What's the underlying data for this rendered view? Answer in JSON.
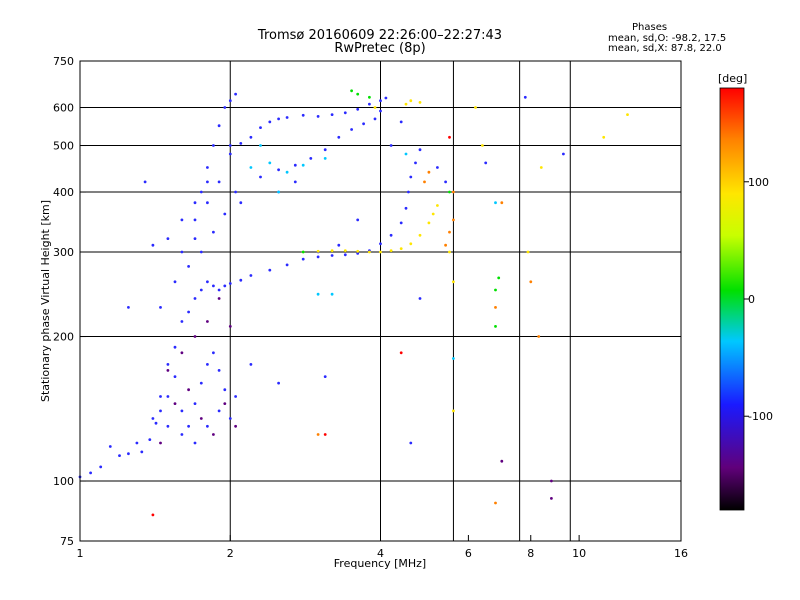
{
  "header": {
    "title_line1": "Tromsø 20160609 22:26:00–22:27:43",
    "title_line2": "RwPretec (8p)",
    "phase_title": "Phases",
    "phase_o": "mean, sd,O: -98.2, 17.5",
    "phase_x": "mean, sd,X: 87.8, 22.0"
  },
  "colorbar": {
    "unit_label": "[deg]",
    "ticks": [
      "100",
      "0",
      "-100"
    ],
    "tick_values": [
      100,
      0,
      -100
    ],
    "range": [
      -180,
      180
    ]
  },
  "chart_data": {
    "type": "scatter",
    "title": "Tromsø 20160609 22:26:00–22:27:43",
    "subtitle": "RwPretec (8p)",
    "xlabel": "Frequency [MHz]",
    "ylabel": "Stationary phase Virtual Height [km]",
    "x_scale": "log",
    "y_scale": "log",
    "xlim": [
      1,
      16
    ],
    "ylim": [
      75,
      750
    ],
    "x_ticks": [
      1,
      2,
      4,
      6,
      8,
      10,
      16
    ],
    "x_ticklabels": [
      "1",
      "2",
      "4",
      "6",
      "8",
      "10",
      "16"
    ],
    "y_ticks": [
      75,
      100,
      200,
      300,
      400,
      500,
      600,
      750
    ],
    "y_ticklabels": [
      "75",
      "100",
      "200",
      "300",
      "400",
      "500",
      "600",
      "750"
    ],
    "grid_x": [
      2,
      4,
      5.6,
      7.6,
      9.6
    ],
    "grid_y": [
      100,
      200,
      300,
      400,
      500,
      600
    ],
    "series": [
      {
        "color": "#2a2aff",
        "points": [
          [
            1.0,
            102
          ],
          [
            1.05,
            104
          ],
          [
            1.1,
            107
          ],
          [
            1.15,
            118
          ],
          [
            1.2,
            113
          ],
          [
            1.25,
            114
          ],
          [
            1.3,
            120
          ],
          [
            1.33,
            115
          ],
          [
            1.38,
            122
          ],
          [
            1.42,
            132
          ],
          [
            1.45,
            140
          ],
          [
            1.5,
            175
          ],
          [
            1.55,
            190
          ],
          [
            1.6,
            215
          ],
          [
            1.65,
            225
          ],
          [
            1.7,
            240
          ],
          [
            1.75,
            250
          ],
          [
            1.8,
            260
          ],
          [
            1.85,
            255
          ],
          [
            1.9,
            250
          ],
          [
            1.95,
            255
          ],
          [
            2.0,
            258
          ],
          [
            2.1,
            262
          ],
          [
            2.2,
            268
          ],
          [
            2.4,
            275
          ],
          [
            2.6,
            282
          ],
          [
            2.8,
            290
          ],
          [
            3.0,
            293
          ],
          [
            3.2,
            295
          ],
          [
            3.4,
            296
          ],
          [
            3.6,
            298
          ],
          [
            3.8,
            302
          ],
          [
            4.0,
            312
          ],
          [
            4.2,
            325
          ],
          [
            4.4,
            345
          ],
          [
            4.5,
            370
          ],
          [
            4.55,
            400
          ],
          [
            4.6,
            430
          ],
          [
            4.7,
            460
          ],
          [
            4.8,
            490
          ],
          [
            2.0,
            500
          ],
          [
            2.1,
            505
          ],
          [
            2.2,
            520
          ],
          [
            2.3,
            545
          ],
          [
            2.4,
            560
          ],
          [
            2.5,
            568
          ],
          [
            2.6,
            572
          ],
          [
            2.8,
            578
          ],
          [
            3.0,
            575
          ],
          [
            3.2,
            580
          ],
          [
            3.4,
            585
          ],
          [
            3.6,
            595
          ],
          [
            3.8,
            610
          ],
          [
            4.0,
            620
          ],
          [
            4.1,
            628
          ],
          [
            2.3,
            430
          ],
          [
            2.5,
            445
          ],
          [
            2.7,
            455
          ],
          [
            2.9,
            470
          ],
          [
            3.1,
            490
          ],
          [
            3.3,
            520
          ],
          [
            3.5,
            540
          ],
          [
            3.7,
            555
          ],
          [
            3.9,
            568
          ],
          [
            4.0,
            590
          ],
          [
            1.5,
            150
          ],
          [
            1.55,
            165
          ],
          [
            1.6,
            140
          ],
          [
            1.65,
            130
          ],
          [
            1.7,
            145
          ],
          [
            1.75,
            160
          ],
          [
            1.8,
            175
          ],
          [
            1.85,
            185
          ],
          [
            1.9,
            170
          ],
          [
            1.95,
            155
          ],
          [
            2.05,
            150
          ],
          [
            1.4,
            135
          ],
          [
            1.45,
            150
          ],
          [
            1.5,
            130
          ],
          [
            1.6,
            125
          ],
          [
            1.7,
            120
          ],
          [
            1.8,
            130
          ],
          [
            1.9,
            140
          ],
          [
            2.0,
            135
          ],
          [
            1.6,
            300
          ],
          [
            1.7,
            350
          ],
          [
            1.75,
            400
          ],
          [
            1.8,
            450
          ],
          [
            1.85,
            500
          ],
          [
            1.9,
            550
          ],
          [
            1.95,
            600
          ],
          [
            2.0,
            620
          ],
          [
            2.05,
            640
          ],
          [
            1.7,
            320
          ],
          [
            1.8,
            380
          ],
          [
            1.9,
            420
          ],
          [
            2.0,
            480
          ],
          [
            1.45,
            230
          ],
          [
            1.55,
            260
          ],
          [
            1.65,
            280
          ],
          [
            1.75,
            300
          ],
          [
            1.85,
            330
          ],
          [
            1.95,
            360
          ],
          [
            2.05,
            400
          ],
          [
            2.1,
            380
          ],
          [
            2.5,
            400
          ],
          [
            2.7,
            420
          ],
          [
            3.0,
            300
          ],
          [
            3.3,
            310
          ],
          [
            3.6,
            350
          ],
          [
            4.2,
            500
          ],
          [
            4.4,
            560
          ],
          [
            5.2,
            450
          ],
          [
            5.4,
            420
          ],
          [
            6.5,
            460
          ],
          [
            7.8,
            630
          ],
          [
            9.3,
            480
          ],
          [
            1.25,
            230
          ],
          [
            1.35,
            420
          ],
          [
            1.4,
            310
          ],
          [
            1.5,
            320
          ],
          [
            1.6,
            350
          ],
          [
            1.7,
            380
          ],
          [
            1.8,
            420
          ],
          [
            2.2,
            175
          ],
          [
            2.5,
            160
          ],
          [
            3.1,
            165
          ],
          [
            4.6,
            120
          ],
          [
            4.8,
            240
          ]
        ]
      },
      {
        "color": "#ffe600",
        "points": [
          [
            2.8,
            300
          ],
          [
            3.0,
            301
          ],
          [
            3.2,
            302
          ],
          [
            3.4,
            302
          ],
          [
            3.6,
            301
          ],
          [
            3.8,
            300
          ],
          [
            4.0,
            300
          ],
          [
            4.2,
            302
          ],
          [
            4.4,
            305
          ],
          [
            4.6,
            312
          ],
          [
            4.8,
            325
          ],
          [
            5.0,
            345
          ],
          [
            5.1,
            360
          ],
          [
            5.2,
            375
          ],
          [
            4.5,
            610
          ],
          [
            4.6,
            620
          ],
          [
            4.8,
            615
          ],
          [
            3.9,
            600
          ],
          [
            5.5,
            300
          ],
          [
            6.2,
            600
          ],
          [
            6.4,
            500
          ],
          [
            7.9,
            300
          ],
          [
            8.4,
            450
          ],
          [
            11.2,
            520
          ],
          [
            12.5,
            580
          ],
          [
            5.6,
            140
          ],
          [
            5.6,
            260
          ]
        ]
      },
      {
        "color": "#00c8ff",
        "points": [
          [
            2.2,
            450
          ],
          [
            2.4,
            460
          ],
          [
            2.6,
            440
          ],
          [
            2.8,
            455
          ],
          [
            3.1,
            470
          ],
          [
            2.3,
            500
          ],
          [
            3.0,
            245
          ],
          [
            3.2,
            245
          ],
          [
            4.5,
            480
          ],
          [
            5.6,
            180
          ],
          [
            6.8,
            380
          ],
          [
            2.5,
            400
          ]
        ]
      },
      {
        "color": "#00e000",
        "points": [
          [
            3.5,
            650
          ],
          [
            3.6,
            640
          ],
          [
            3.8,
            630
          ],
          [
            6.8,
            250
          ],
          [
            6.9,
            265
          ],
          [
            6.8,
            210
          ],
          [
            2.8,
            300
          ],
          [
            5.5,
            400
          ]
        ]
      },
      {
        "color": "#ff8000",
        "points": [
          [
            4.9,
            420
          ],
          [
            5.0,
            440
          ],
          [
            5.5,
            330
          ],
          [
            5.4,
            310
          ],
          [
            5.6,
            350
          ],
          [
            6.8,
            230
          ],
          [
            7.0,
            380
          ],
          [
            8.0,
            260
          ],
          [
            8.3,
            200
          ],
          [
            3.0,
            125
          ],
          [
            5.6,
            400
          ],
          [
            6.8,
            90
          ]
        ]
      },
      {
        "color": "#ff0000",
        "points": [
          [
            1.4,
            85
          ],
          [
            4.4,
            185
          ],
          [
            5.5,
            520
          ],
          [
            3.1,
            125
          ]
        ]
      },
      {
        "color": "#600080",
        "points": [
          [
            1.55,
            145
          ],
          [
            1.65,
            155
          ],
          [
            1.75,
            135
          ],
          [
            1.85,
            125
          ],
          [
            1.95,
            145
          ],
          [
            2.05,
            130
          ],
          [
            1.5,
            170
          ],
          [
            1.6,
            185
          ],
          [
            1.7,
            200
          ],
          [
            1.8,
            215
          ],
          [
            1.9,
            240
          ],
          [
            2.0,
            210
          ],
          [
            1.45,
            120
          ],
          [
            8.8,
            100
          ],
          [
            8.8,
            92
          ],
          [
            7.0,
            110
          ]
        ]
      }
    ]
  }
}
